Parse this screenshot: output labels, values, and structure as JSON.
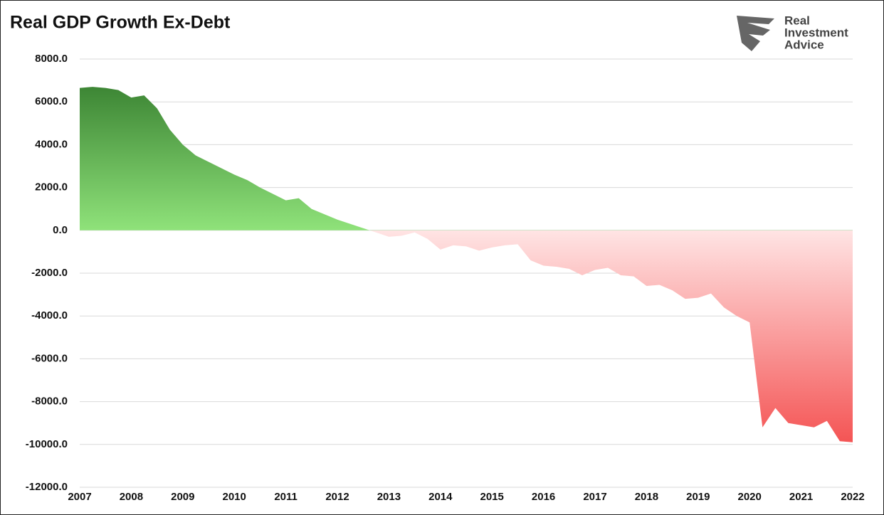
{
  "chart_data": {
    "type": "area",
    "title": "Real GDP Growth Ex-Debt",
    "logo": [
      "Real",
      "Investment",
      "Advice"
    ],
    "x": [
      2007,
      2007.25,
      2007.5,
      2007.75,
      2008,
      2008.25,
      2008.5,
      2008.75,
      2009,
      2009.25,
      2009.5,
      2009.75,
      2010,
      2010.25,
      2010.5,
      2010.75,
      2011,
      2011.25,
      2011.5,
      2011.75,
      2012,
      2012.25,
      2012.5,
      2012.75,
      2013,
      2013.25,
      2013.5,
      2013.75,
      2014,
      2014.25,
      2014.5,
      2014.75,
      2015,
      2015.25,
      2015.5,
      2015.75,
      2016,
      2016.25,
      2016.5,
      2016.75,
      2017,
      2017.25,
      2017.5,
      2017.75,
      2018,
      2018.25,
      2018.5,
      2018.75,
      2019,
      2019.25,
      2019.5,
      2019.75,
      2020,
      2020.25,
      2020.5,
      2020.75,
      2021,
      2021.25,
      2021.5,
      2021.75,
      2022
    ],
    "values": [
      6650,
      6700,
      6650,
      6550,
      6200,
      6300,
      5700,
      4700,
      4000,
      3500,
      3200,
      2900,
      2600,
      2350,
      2000,
      1700,
      1400,
      1500,
      1000,
      750,
      500,
      300,
      100,
      -100,
      -300,
      -250,
      -100,
      -400,
      -900,
      -700,
      -750,
      -950,
      -800,
      -700,
      -650,
      -1400,
      -1650,
      -1700,
      -1800,
      -2100,
      -1850,
      -1750,
      -2100,
      -2150,
      -2600,
      -2550,
      -2800,
      -3200,
      -3150,
      -2950,
      -3600,
      -4000,
      -4300,
      -9200,
      -8300,
      -9000,
      -9100,
      -9200,
      -8900,
      -9850,
      -9900
    ],
    "colors": {
      "positive": [
        "#2d7427",
        "#8fe27a"
      ],
      "negative": [
        "#ffe4e4",
        "#f23636"
      ]
    },
    "xlim": [
      2007,
      2022
    ],
    "xticks": [
      2007,
      2008,
      2009,
      2010,
      2011,
      2012,
      2013,
      2014,
      2015,
      2016,
      2017,
      2018,
      2019,
      2020,
      2021,
      2022
    ],
    "ylim": [
      -12000,
      8000
    ],
    "yticks": [
      {
        "value": -12000,
        "label": "-12000.0"
      },
      {
        "value": -10000,
        "label": "-10000.0"
      },
      {
        "value": -8000,
        "label": "-8000.0"
      },
      {
        "value": -6000,
        "label": "-6000.0"
      },
      {
        "value": -4000,
        "label": "-4000.0"
      },
      {
        "value": -2000,
        "label": "-2000.0"
      },
      {
        "value": 0,
        "label": "0.0"
      },
      {
        "value": 2000,
        "label": "2000.0"
      },
      {
        "value": 4000,
        "label": "4000.0"
      },
      {
        "value": 6000,
        "label": "6000.0"
      },
      {
        "value": 8000,
        "label": "8000.0"
      }
    ],
    "grid": true
  }
}
